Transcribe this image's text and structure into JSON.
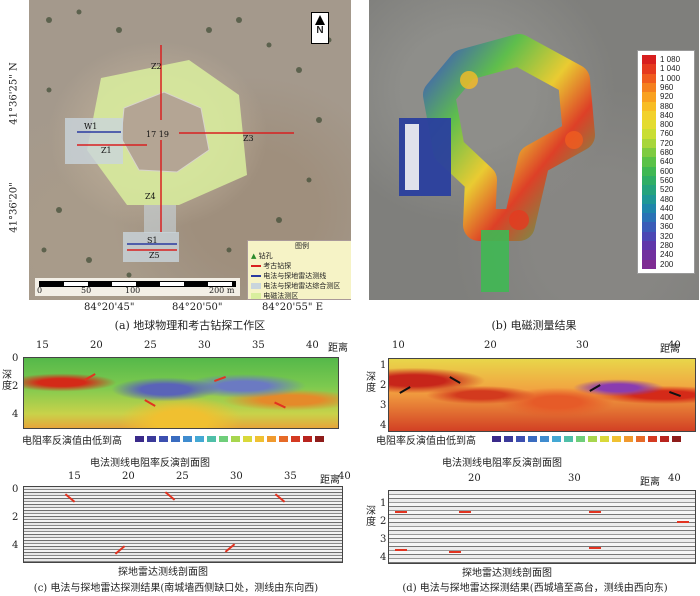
{
  "panel_a": {
    "north": "N",
    "lat_top": "41°36'25\" N",
    "lat_bottom": "41°36'20\"",
    "lon_labels": [
      "84°20'45\"",
      "84°20'50\"",
      "84°20'55\" E"
    ],
    "scale_labels": [
      "0",
      "50",
      "100",
      "200 m"
    ],
    "lines": [
      "Z2",
      "W1",
      "Z1",
      "Z3",
      "Z4",
      "S1",
      "Z5"
    ],
    "center_label": "17 19",
    "legend": {
      "title": "图例",
      "items": [
        "钻孔",
        "考古钻探",
        "电法与探地雷达测线",
        "电法与探地雷达综合测区",
        "电磁法测区"
      ]
    },
    "caption": "(a) 地球物理和考古钻探工作区"
  },
  "panel_b": {
    "colorbar": [
      "1 080",
      "1 040",
      "1 000",
      "960",
      "920",
      "880",
      "840",
      "800",
      "760",
      "720",
      "680",
      "640",
      "600",
      "560",
      "520",
      "480",
      "440",
      "400",
      "360",
      "320",
      "280",
      "240",
      "200"
    ],
    "colorbar_colors": [
      "#d71f1f",
      "#e53a1f",
      "#f05c1f",
      "#f5801f",
      "#f9a120",
      "#f8bd24",
      "#f2d12b",
      "#e3dc30",
      "#c9de33",
      "#a7d63a",
      "#7ecb40",
      "#5ac247",
      "#3fb853",
      "#2fae66",
      "#25a37d",
      "#1f9796",
      "#1f86ab",
      "#2a72b6",
      "#3a5cb8",
      "#4c47b4",
      "#5f36aa",
      "#71309f",
      "#7f2c93"
    ],
    "caption": "(b) 电磁测量结果"
  },
  "panel_c": {
    "top_ticks": [
      "15",
      "20",
      "25",
      "30",
      "35",
      "40"
    ],
    "top_axis_label": "距离",
    "depth_ticks": [
      "0",
      "2",
      "4"
    ],
    "legend_label": "电阻率反演值由低到高",
    "section_title": "电法测线电阻率反演剖面图",
    "gpr_ticks": [
      "0",
      "2",
      "4"
    ],
    "gpr_top_ticks": [
      "15",
      "20",
      "25",
      "30",
      "35",
      "40"
    ],
    "gpr_axis_label": "距离",
    "gpr_title": "探地雷达测线剖面图",
    "caption": "(c) 电法与探地雷达探测结果(南城墙西侧缺口处，测线由东向西)"
  },
  "panel_d": {
    "top_ticks": [
      "10",
      "20",
      "30",
      "40"
    ],
    "top_axis_label": "距离",
    "depth_label": "深度",
    "depth_ticks": [
      "1",
      "2",
      "3",
      "4"
    ],
    "legend_label": "电阻率反演值由低到高",
    "section_title": "电法测线电阻率反演剖面图",
    "gpr_top_ticks": [
      "20",
      "30",
      "40"
    ],
    "gpr_axis_label": "距离",
    "gpr_depth_label": "深度",
    "gpr_depth_ticks": [
      "1",
      "2",
      "3",
      "4"
    ],
    "gpr_title": "探地雷达测线剖面图",
    "caption": "(d) 电法与探地雷达探测结果(西城墙至高台，测线由西向东)"
  },
  "depth_label_c": "深度",
  "legend_swatches": [
    "#3a2a8a",
    "#3b3a9a",
    "#3c4fb0",
    "#3a6cc0",
    "#3f8ccf",
    "#44a8d4",
    "#4fbfa8",
    "#6fce7a",
    "#a7d64e",
    "#d9d93a",
    "#f0c132",
    "#f09a2e",
    "#e66a28",
    "#d43a22",
    "#b8241e",
    "#8e1c1a"
  ]
}
